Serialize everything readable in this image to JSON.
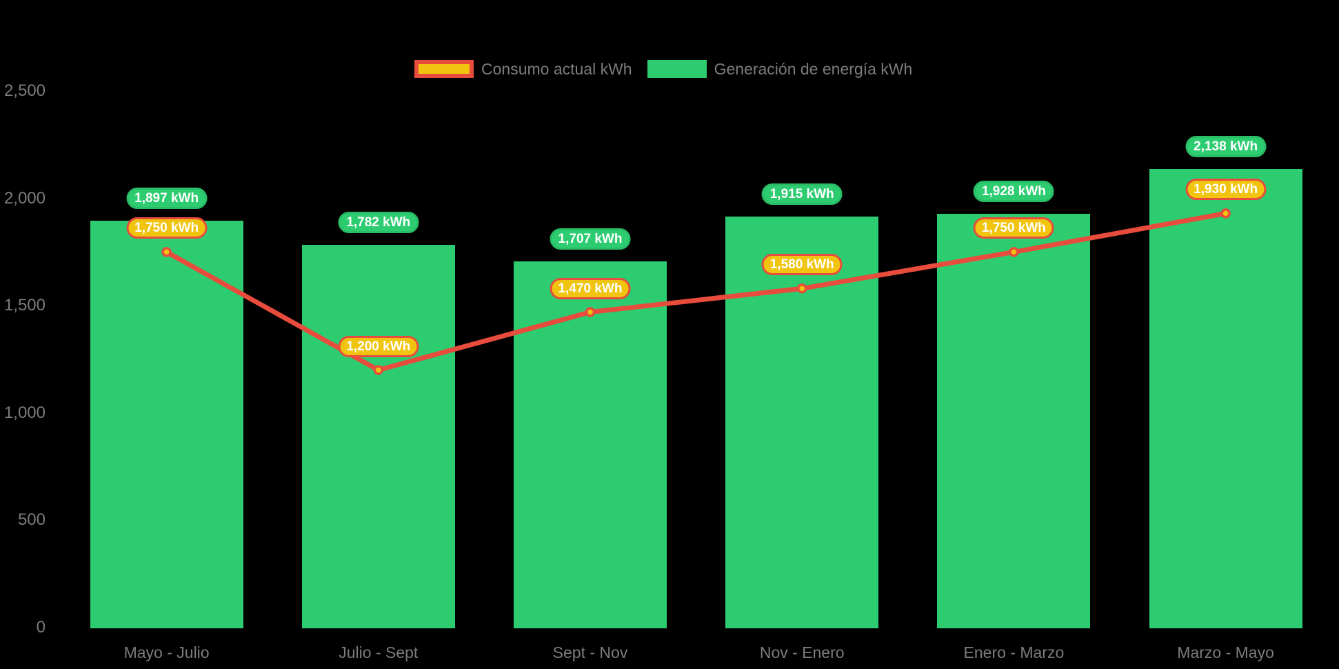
{
  "colors": {
    "background": "#000000",
    "bar_fill": "#2ecc71",
    "bar_badge_fill": "#2ecc71",
    "bar_badge_border": "#29bd66",
    "line": "#e74c3c",
    "marker_fill": "#f1c40f",
    "line_badge_fill": "#f1c40f",
    "line_badge_border": "#e74c3c",
    "axis_text": "#7c7c7c",
    "badge_text": "#ffffff"
  },
  "legend": {
    "items": [
      {
        "label": "Consumo actual kWh",
        "series": "consumo"
      },
      {
        "label": "Generación de energía kWh",
        "series": "generacion"
      }
    ]
  },
  "chart_data": {
    "type": "bar",
    "title": "",
    "xlabel": "",
    "ylabel": "",
    "grid": false,
    "legend_position": "top",
    "background": "black",
    "categories": [
      "Mayo - Julio",
      "Julio - Sept",
      "Sept - Nov",
      "Nov - Enero",
      "Enero - Marzo",
      "Marzo - Mayo"
    ],
    "y_axis": {
      "range": [
        0,
        2500
      ],
      "ticks": [
        {
          "value": 0,
          "label": "0"
        },
        {
          "value": 500,
          "label": "500"
        },
        {
          "value": 1000,
          "label": "1,000"
        },
        {
          "value": 1500,
          "label": "1,500"
        },
        {
          "value": 2000,
          "label": "2,000"
        },
        {
          "value": 2500,
          "label": "2,500"
        }
      ]
    },
    "series": [
      {
        "name": "Generación de energía kWh",
        "type": "bar",
        "color": "#2ecc71",
        "values": [
          1897,
          1782,
          1707,
          1915,
          1928,
          2138
        ],
        "data_labels": [
          "1,897 kWh",
          "1,782 kWh",
          "1,707 kWh",
          "1,915 kWh",
          "1,928 kWh",
          "2,138 kWh"
        ]
      },
      {
        "name": "Consumo actual kWh",
        "type": "line",
        "color": "#e74c3c",
        "marker_fill": "#f1c40f",
        "values": [
          1750,
          1200,
          1470,
          1580,
          1750,
          1930
        ],
        "data_labels": [
          "1,750 kWh",
          "1,200 kWh",
          "1,470 kWh",
          "1,580 kWh",
          "1,750 kWh",
          "1,930 kWh"
        ]
      }
    ]
  }
}
